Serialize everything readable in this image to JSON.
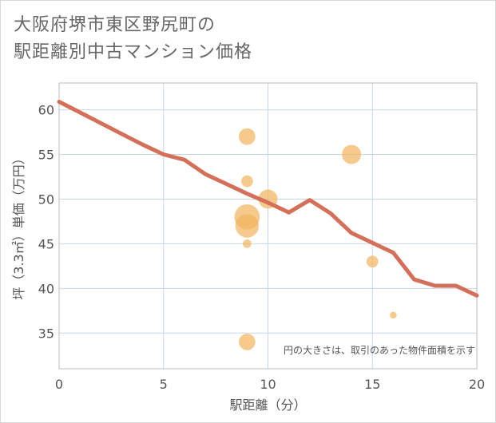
{
  "title": {
    "line1": "大阪府堺市東区野尻町の",
    "line2": "駅距離別中古マンション価格"
  },
  "chart_data": {
    "type": "scatter",
    "xlabel": "駅距離（分）",
    "ylabel": "坪（3.3㎡）単価（万円）",
    "xlim": [
      0,
      20
    ],
    "ylim": [
      31,
      63
    ],
    "xticks": [
      0,
      5,
      10,
      15,
      20
    ],
    "yticks": [
      35,
      40,
      45,
      50,
      55,
      60
    ],
    "grid": true,
    "note": "円の大きさは、取引のあった物件面積を示す",
    "colors": {
      "line": "#d4705a",
      "bubble": "#f2b35c",
      "grid": "#c8d7e6",
      "plot_border": "#bbbbbb"
    },
    "series": [
      {
        "type": "line",
        "points": [
          {
            "x": 0,
            "y": 60.9
          },
          {
            "x": 1,
            "y": 59.7
          },
          {
            "x": 2,
            "y": 58.5
          },
          {
            "x": 3,
            "y": 57.3
          },
          {
            "x": 4,
            "y": 56.1
          },
          {
            "x": 5,
            "y": 55.0
          },
          {
            "x": 6,
            "y": 54.4
          },
          {
            "x": 7,
            "y": 52.8
          },
          {
            "x": 8,
            "y": 51.7
          },
          {
            "x": 9,
            "y": 50.6
          },
          {
            "x": 10,
            "y": 49.6
          },
          {
            "x": 11,
            "y": 48.5
          },
          {
            "x": 12,
            "y": 49.9
          },
          {
            "x": 13,
            "y": 48.4
          },
          {
            "x": 14,
            "y": 46.2
          },
          {
            "x": 15,
            "y": 45.1
          },
          {
            "x": 16,
            "y": 44.0
          },
          {
            "x": 17,
            "y": 41.0
          },
          {
            "x": 18,
            "y": 40.3
          },
          {
            "x": 19,
            "y": 40.3
          },
          {
            "x": 20,
            "y": 39.2
          }
        ]
      },
      {
        "type": "bubble",
        "points": [
          {
            "x": 9,
            "y": 57.0,
            "size": 3
          },
          {
            "x": 9,
            "y": 52.0,
            "size": 1.5
          },
          {
            "x": 9,
            "y": 48.0,
            "size": 7
          },
          {
            "x": 9,
            "y": 47.0,
            "size": 6
          },
          {
            "x": 9,
            "y": 45.0,
            "size": 0.8
          },
          {
            "x": 9,
            "y": 34.0,
            "size": 3
          },
          {
            "x": 10,
            "y": 50.0,
            "size": 4
          },
          {
            "x": 14,
            "y": 55.0,
            "size": 4
          },
          {
            "x": 15,
            "y": 43.0,
            "size": 1.5
          },
          {
            "x": 16,
            "y": 37.0,
            "size": 0.5
          }
        ]
      }
    ]
  }
}
